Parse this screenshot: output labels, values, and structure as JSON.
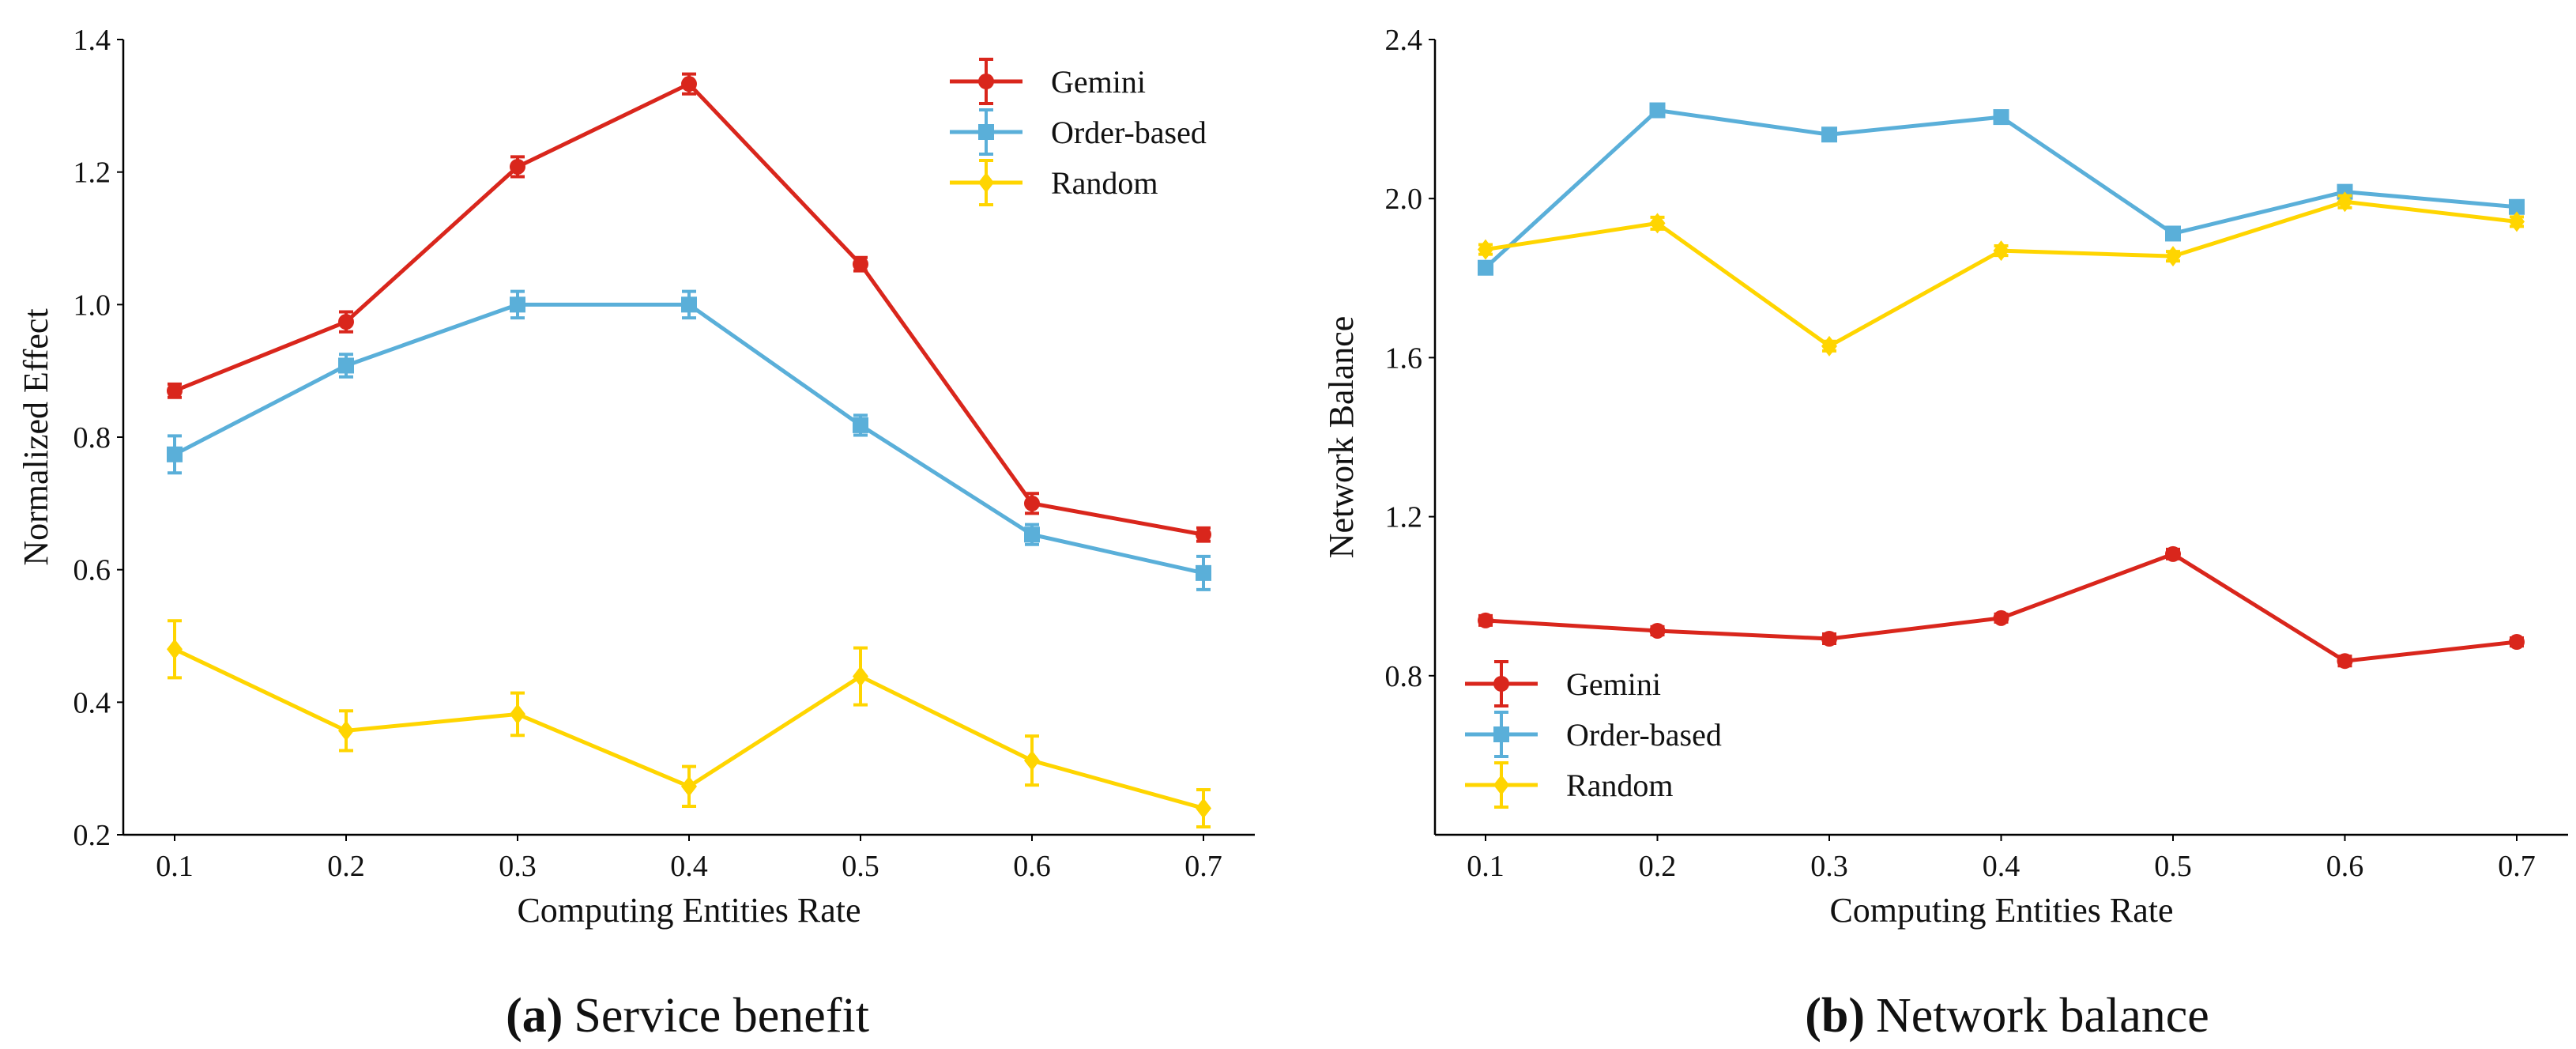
{
  "colors": {
    "Gemini": "#d9261c",
    "Order-based": "#5aafd9",
    "Random": "#ffd500",
    "axis": "#000000"
  },
  "chart_data": [
    {
      "type": "line",
      "title": "Service benefit",
      "caption_label": "(a)",
      "xlabel": "Computing Entities Rate",
      "ylabel": "Normalized Effect",
      "x": [
        0.1,
        0.2,
        0.3,
        0.4,
        0.5,
        0.6,
        0.7
      ],
      "x_tick_labels": [
        "0.1",
        "0.2",
        "0.3",
        "0.4",
        "0.5",
        "0.6",
        "0.7"
      ],
      "ylim": [
        0.2,
        1.4
      ],
      "y_ticks": [
        0.2,
        0.4,
        0.6,
        0.8,
        1.0,
        1.2,
        1.4
      ],
      "y_tick_labels": [
        "0.2",
        "0.4",
        "0.6",
        "0.8",
        "1.0",
        "1.2",
        "1.4"
      ],
      "legend": "top-right",
      "grid": false,
      "series": [
        {
          "name": "Gemini",
          "marker": "circle",
          "values": [
            0.87,
            0.974,
            1.208,
            1.333,
            1.061,
            0.7,
            0.653
          ],
          "errors": [
            0.01,
            0.015,
            0.015,
            0.015,
            0.01,
            0.015,
            0.01
          ]
        },
        {
          "name": "Order-based",
          "marker": "square",
          "values": [
            0.774,
            0.908,
            1.0,
            1.0,
            0.818,
            0.653,
            0.595
          ],
          "errors": [
            0.028,
            0.017,
            0.02,
            0.02,
            0.015,
            0.015,
            0.025
          ]
        },
        {
          "name": "Random",
          "marker": "diamond",
          "values": [
            0.48,
            0.357,
            0.382,
            0.273,
            0.439,
            0.312,
            0.24
          ],
          "errors": [
            0.043,
            0.03,
            0.032,
            0.03,
            0.043,
            0.037,
            0.028
          ]
        }
      ]
    },
    {
      "type": "line",
      "title": "Network balance",
      "caption_label": "(b)",
      "xlabel": "Computing Entities Rate",
      "ylabel": "Network Balance",
      "x": [
        0.1,
        0.2,
        0.3,
        0.4,
        0.5,
        0.6,
        0.7
      ],
      "x_tick_labels": [
        "0.1",
        "0.2",
        "0.3",
        "0.4",
        "0.5",
        "0.6",
        "0.7"
      ],
      "ylim": [
        0.4,
        2.4
      ],
      "y_ticks": [
        0.8,
        1.2,
        1.6,
        2.0,
        2.4
      ],
      "y_tick_labels": [
        "0.8",
        "1.2",
        "1.6",
        "2.0",
        "2.4"
      ],
      "legend": "bottom-left",
      "grid": false,
      "series": [
        {
          "name": "Gemini",
          "marker": "circle",
          "values": [
            0.939,
            0.913,
            0.893,
            0.945,
            1.106,
            0.837,
            0.885
          ],
          "errors": [
            0.012,
            0.01,
            0.012,
            0.01,
            0.012,
            0.012,
            0.01
          ]
        },
        {
          "name": "Order-based",
          "marker": "square",
          "values": [
            1.826,
            2.222,
            2.161,
            2.205,
            1.912,
            2.017,
            1.979
          ],
          "errors": [
            0.015,
            0.015,
            0.015,
            0.01,
            0.012,
            0.015,
            0.015
          ]
        },
        {
          "name": "Random",
          "marker": "diamond",
          "values": [
            1.872,
            1.938,
            1.629,
            1.869,
            1.855,
            1.992,
            1.942
          ],
          "errors": [
            0.012,
            0.015,
            0.012,
            0.012,
            0.012,
            0.015,
            0.012
          ]
        }
      ]
    }
  ]
}
